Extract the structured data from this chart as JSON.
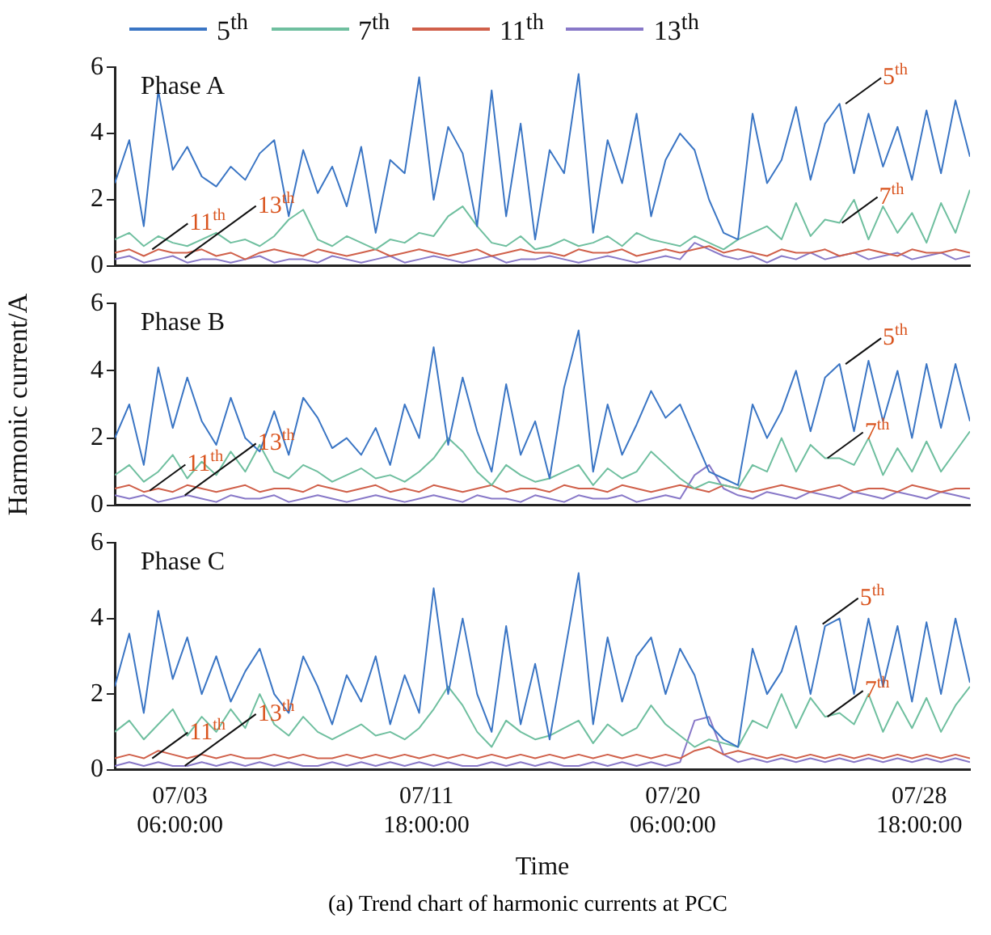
{
  "chart_data": [
    {
      "type": "line",
      "title": "Phase A",
      "legend": "top",
      "grid": false,
      "tick_labels": "y",
      "xlim": [
        "--07-01T00:00",
        "--07-30T12:00"
      ],
      "ylim": [
        0,
        6
      ],
      "yticks": [
        0,
        2,
        4,
        6
      ],
      "xticks": [
        {
          "value": "--07-03T06:00",
          "label": null
        },
        {
          "value": "--07-11T18:00",
          "label": null
        },
        {
          "value": "--07-20T06:00",
          "label": null
        },
        {
          "value": "--07-28T18:00",
          "label": null
        }
      ],
      "x": [
        "--07-01T00:00",
        "--07-01T12:00",
        "--07-02T00:00",
        "--07-02T12:00",
        "--07-03T00:00",
        "--07-03T12:00",
        "--07-04T00:00",
        "--07-04T12:00",
        "--07-05T00:00",
        "--07-05T12:00",
        "--07-06T00:00",
        "--07-06T12:00",
        "--07-07T00:00",
        "--07-07T12:00",
        "--07-08T00:00",
        "--07-08T12:00",
        "--07-09T00:00",
        "--07-09T12:00",
        "--07-10T00:00",
        "--07-10T12:00",
        "--07-11T00:00",
        "--07-11T12:00",
        "--07-12T00:00",
        "--07-12T12:00",
        "--07-13T00:00",
        "--07-13T12:00",
        "--07-14T00:00",
        "--07-14T12:00",
        "--07-15T00:00",
        "--07-15T12:00",
        "--07-16T00:00",
        "--07-16T12:00",
        "--07-17T00:00",
        "--07-17T12:00",
        "--07-18T00:00",
        "--07-18T12:00",
        "--07-19T00:00",
        "--07-19T12:00",
        "--07-20T00:00",
        "--07-20T12:00",
        "--07-21T00:00",
        "--07-21T12:00",
        "--07-22T00:00",
        "--07-22T12:00",
        "--07-23T00:00",
        "--07-23T12:00",
        "--07-24T00:00",
        "--07-24T12:00",
        "--07-25T00:00",
        "--07-25T12:00",
        "--07-26T00:00",
        "--07-26T12:00",
        "--07-27T00:00",
        "--07-27T12:00",
        "--07-28T00:00",
        "--07-28T12:00",
        "--07-29T00:00",
        "--07-29T12:00",
        "--07-30T00:00",
        "--07-30T12:00"
      ],
      "series": [
        {
          "name": "5$^{th}$",
          "color": "#3a75c4",
          "values": [
            2.5,
            3.8,
            1.2,
            5.3,
            2.9,
            3.6,
            2.7,
            2.4,
            3.0,
            2.6,
            3.4,
            3.8,
            1.5,
            3.5,
            2.2,
            3.0,
            1.8,
            3.6,
            1.0,
            3.2,
            2.8,
            5.7,
            2.0,
            4.2,
            3.4,
            1.2,
            5.3,
            1.5,
            4.3,
            0.8,
            3.5,
            2.8,
            5.8,
            1.0,
            3.8,
            2.5,
            4.6,
            1.5,
            3.2,
            4.0,
            3.5,
            2.0,
            1.0,
            0.8,
            4.6,
            2.5,
            3.2,
            4.8,
            2.6,
            4.3,
            4.9,
            2.8,
            4.6,
            3.0,
            4.2,
            2.6,
            4.7,
            2.8,
            5.0,
            3.3
          ]
        },
        {
          "name": "7$^{th}$",
          "color": "#6fbf9f",
          "values": [
            0.8,
            1.0,
            0.6,
            0.9,
            0.7,
            0.6,
            0.8,
            1.0,
            0.7,
            0.8,
            0.6,
            0.9,
            1.4,
            1.7,
            0.8,
            0.6,
            0.9,
            0.7,
            0.5,
            0.8,
            0.7,
            1.0,
            0.9,
            1.5,
            1.8,
            1.2,
            0.7,
            0.6,
            0.9,
            0.5,
            0.6,
            0.8,
            0.6,
            0.7,
            0.9,
            0.6,
            1.0,
            0.8,
            0.7,
            0.6,
            0.9,
            0.7,
            0.5,
            0.8,
            1.0,
            1.2,
            0.8,
            1.9,
            0.9,
            1.4,
            1.3,
            2.0,
            0.8,
            1.8,
            1.0,
            1.6,
            0.7,
            1.9,
            1.0,
            2.3
          ]
        },
        {
          "name": "11$^{th}$",
          "color": "#d0604a",
          "values": [
            0.4,
            0.5,
            0.3,
            0.5,
            0.4,
            0.4,
            0.5,
            0.3,
            0.4,
            0.2,
            0.4,
            0.5,
            0.4,
            0.3,
            0.5,
            0.4,
            0.3,
            0.4,
            0.5,
            0.3,
            0.4,
            0.5,
            0.4,
            0.3,
            0.4,
            0.5,
            0.3,
            0.4,
            0.5,
            0.4,
            0.4,
            0.3,
            0.5,
            0.4,
            0.4,
            0.5,
            0.3,
            0.4,
            0.5,
            0.4,
            0.5,
            0.6,
            0.4,
            0.5,
            0.4,
            0.3,
            0.5,
            0.4,
            0.4,
            0.5,
            0.3,
            0.4,
            0.5,
            0.4,
            0.3,
            0.5,
            0.4,
            0.4,
            0.5,
            0.4
          ]
        },
        {
          "name": "13$^{th}$",
          "color": "#8878c8",
          "values": [
            0.2,
            0.3,
            0.1,
            0.2,
            0.3,
            0.1,
            0.2,
            0.2,
            0.1,
            0.2,
            0.3,
            0.1,
            0.2,
            0.2,
            0.1,
            0.3,
            0.2,
            0.1,
            0.2,
            0.3,
            0.1,
            0.2,
            0.3,
            0.2,
            0.1,
            0.2,
            0.3,
            0.1,
            0.2,
            0.2,
            0.3,
            0.2,
            0.1,
            0.2,
            0.3,
            0.2,
            0.1,
            0.2,
            0.3,
            0.2,
            0.7,
            0.5,
            0.3,
            0.2,
            0.3,
            0.1,
            0.3,
            0.2,
            0.4,
            0.2,
            0.3,
            0.4,
            0.2,
            0.3,
            0.4,
            0.2,
            0.3,
            0.4,
            0.2,
            0.3
          ]
        }
      ],
      "annotations": [
        {
          "text": "5$^{th}$",
          "x": "--07-26T05:00",
          "y": 4.9
        },
        {
          "text": "7$^{th}$",
          "x": "--07-26T02:00",
          "y": 1.3
        },
        {
          "text": "11$^{th}$",
          "x": "--07-02T07:00",
          "y": 0.5
        },
        {
          "text": "13$^{th}$",
          "x": "--07-03T10:00",
          "y": 0.25
        }
      ]
    },
    {
      "type": "line",
      "title": "Phase B",
      "ylabel": "Harmonic current/A",
      "grid": false,
      "tick_labels": "y",
      "xlim": [
        "--07-01T00:00",
        "--07-30T12:00"
      ],
      "ylim": [
        0,
        6
      ],
      "yticks": [
        0,
        2,
        4,
        6
      ],
      "xticks": [
        {
          "value": "--07-03T06:00",
          "label": null
        },
        {
          "value": "--07-11T18:00",
          "label": null
        },
        {
          "value": "--07-20T06:00",
          "label": null
        },
        {
          "value": "--07-28T18:00",
          "label": null
        }
      ],
      "x": [
        "--07-01T00:00",
        "--07-01T12:00",
        "--07-02T00:00",
        "--07-02T12:00",
        "--07-03T00:00",
        "--07-03T12:00",
        "--07-04T00:00",
        "--07-04T12:00",
        "--07-05T00:00",
        "--07-05T12:00",
        "--07-06T00:00",
        "--07-06T12:00",
        "--07-07T00:00",
        "--07-07T12:00",
        "--07-08T00:00",
        "--07-08T12:00",
        "--07-09T00:00",
        "--07-09T12:00",
        "--07-10T00:00",
        "--07-10T12:00",
        "--07-11T00:00",
        "--07-11T12:00",
        "--07-12T00:00",
        "--07-12T12:00",
        "--07-13T00:00",
        "--07-13T12:00",
        "--07-14T00:00",
        "--07-14T12:00",
        "--07-15T00:00",
        "--07-15T12:00",
        "--07-16T00:00",
        "--07-16T12:00",
        "--07-17T00:00",
        "--07-17T12:00",
        "--07-18T00:00",
        "--07-18T12:00",
        "--07-19T00:00",
        "--07-19T12:00",
        "--07-20T00:00",
        "--07-20T12:00",
        "--07-21T00:00",
        "--07-21T12:00",
        "--07-22T00:00",
        "--07-22T12:00",
        "--07-23T00:00",
        "--07-23T12:00",
        "--07-24T00:00",
        "--07-24T12:00",
        "--07-25T00:00",
        "--07-25T12:00",
        "--07-26T00:00",
        "--07-26T12:00",
        "--07-27T00:00",
        "--07-27T12:00",
        "--07-28T00:00",
        "--07-28T12:00",
        "--07-29T00:00",
        "--07-29T12:00",
        "--07-30T00:00",
        "--07-30T12:00"
      ],
      "series": [
        {
          "color": "#3a75c4",
          "values": [
            2.0,
            3.0,
            1.2,
            4.1,
            2.3,
            3.8,
            2.5,
            1.8,
            3.2,
            2.0,
            1.6,
            2.8,
            1.5,
            3.2,
            2.6,
            1.7,
            2.0,
            1.5,
            2.3,
            1.2,
            3.0,
            2.0,
            4.7,
            1.8,
            3.8,
            2.2,
            1.0,
            3.6,
            1.5,
            2.5,
            0.8,
            3.5,
            5.2,
            1.0,
            3.0,
            1.5,
            2.4,
            3.4,
            2.6,
            3.0,
            2.0,
            1.0,
            0.8,
            0.6,
            3.0,
            2.0,
            2.8,
            4.0,
            2.2,
            3.8,
            4.2,
            2.2,
            4.3,
            2.5,
            4.0,
            2.0,
            4.2,
            2.3,
            4.2,
            2.5
          ]
        },
        {
          "color": "#6fbf9f",
          "values": [
            0.9,
            1.2,
            0.7,
            1.0,
            1.5,
            0.8,
            1.3,
            0.9,
            1.6,
            1.0,
            1.8,
            1.0,
            0.8,
            1.2,
            1.0,
            0.7,
            0.9,
            1.1,
            0.8,
            0.9,
            0.7,
            1.0,
            1.4,
            2.0,
            1.6,
            1.0,
            0.6,
            1.2,
            0.9,
            0.7,
            0.8,
            1.0,
            1.2,
            0.6,
            1.1,
            0.8,
            1.0,
            1.6,
            1.2,
            0.8,
            0.5,
            0.7,
            0.6,
            0.5,
            1.2,
            1.0,
            2.0,
            1.0,
            1.8,
            1.4,
            1.4,
            1.2,
            2.0,
            0.9,
            1.7,
            1.0,
            1.9,
            1.0,
            1.6,
            2.2
          ]
        },
        {
          "color": "#d0604a",
          "values": [
            0.5,
            0.6,
            0.4,
            0.5,
            0.4,
            0.6,
            0.5,
            0.4,
            0.5,
            0.6,
            0.4,
            0.5,
            0.5,
            0.4,
            0.6,
            0.5,
            0.4,
            0.5,
            0.6,
            0.4,
            0.5,
            0.4,
            0.6,
            0.5,
            0.4,
            0.5,
            0.6,
            0.4,
            0.5,
            0.5,
            0.4,
            0.6,
            0.5,
            0.5,
            0.4,
            0.6,
            0.5,
            0.4,
            0.5,
            0.6,
            0.5,
            0.4,
            0.6,
            0.5,
            0.4,
            0.5,
            0.6,
            0.5,
            0.4,
            0.5,
            0.6,
            0.4,
            0.5,
            0.5,
            0.4,
            0.6,
            0.5,
            0.4,
            0.5,
            0.5
          ]
        },
        {
          "color": "#8878c8",
          "values": [
            0.3,
            0.2,
            0.3,
            0.1,
            0.2,
            0.3,
            0.2,
            0.1,
            0.3,
            0.2,
            0.2,
            0.3,
            0.1,
            0.2,
            0.3,
            0.2,
            0.1,
            0.2,
            0.3,
            0.2,
            0.1,
            0.2,
            0.3,
            0.2,
            0.1,
            0.3,
            0.2,
            0.2,
            0.1,
            0.3,
            0.2,
            0.1,
            0.3,
            0.2,
            0.2,
            0.3,
            0.1,
            0.2,
            0.3,
            0.2,
            0.9,
            1.2,
            0.5,
            0.3,
            0.2,
            0.4,
            0.3,
            0.2,
            0.4,
            0.3,
            0.2,
            0.4,
            0.3,
            0.2,
            0.4,
            0.3,
            0.2,
            0.4,
            0.3,
            0.2
          ]
        }
      ],
      "annotations": [
        {
          "text": "5$^{th}$",
          "x": "--07-26T05:00",
          "y": 4.2
        },
        {
          "text": "7$^{th}$",
          "x": "--07-25T14:00",
          "y": 1.4
        },
        {
          "text": "11$^{th}$",
          "x": "--07-02T05:00",
          "y": 0.44
        },
        {
          "text": "13$^{th}$",
          "x": "--07-03T10:00",
          "y": 0.3
        }
      ]
    },
    {
      "type": "line",
      "title": "Phase C",
      "xlabel": "Time",
      "grid": false,
      "xlim": [
        "--07-01T00:00",
        "--07-30T12:00"
      ],
      "ylim": [
        0,
        6
      ],
      "yticks": [
        0,
        2,
        4,
        6
      ],
      "xticks": [
        {
          "value": "--07-03T06:00",
          "label": "07/03 06:00:00"
        },
        {
          "value": "--07-11T18:00",
          "label": "07/11 18:00:00"
        },
        {
          "value": "--07-20T06:00",
          "label": "07/20 06:00:00"
        },
        {
          "value": "--07-28T18:00",
          "label": "07/28 18:00:00"
        }
      ],
      "x": [
        "--07-01T00:00",
        "--07-01T12:00",
        "--07-02T00:00",
        "--07-02T12:00",
        "--07-03T00:00",
        "--07-03T12:00",
        "--07-04T00:00",
        "--07-04T12:00",
        "--07-05T00:00",
        "--07-05T12:00",
        "--07-06T00:00",
        "--07-06T12:00",
        "--07-07T00:00",
        "--07-07T12:00",
        "--07-08T00:00",
        "--07-08T12:00",
        "--07-09T00:00",
        "--07-09T12:00",
        "--07-10T00:00",
        "--07-10T12:00",
        "--07-11T00:00",
        "--07-11T12:00",
        "--07-12T00:00",
        "--07-12T12:00",
        "--07-13T00:00",
        "--07-13T12:00",
        "--07-14T00:00",
        "--07-14T12:00",
        "--07-15T00:00",
        "--07-15T12:00",
        "--07-16T00:00",
        "--07-16T12:00",
        "--07-17T00:00",
        "--07-17T12:00",
        "--07-18T00:00",
        "--07-18T12:00",
        "--07-19T00:00",
        "--07-19T12:00",
        "--07-20T00:00",
        "--07-20T12:00",
        "--07-21T00:00",
        "--07-21T12:00",
        "--07-22T00:00",
        "--07-22T12:00",
        "--07-23T00:00",
        "--07-23T12:00",
        "--07-24T00:00",
        "--07-24T12:00",
        "--07-25T00:00",
        "--07-25T12:00",
        "--07-26T00:00",
        "--07-26T12:00",
        "--07-27T00:00",
        "--07-27T12:00",
        "--07-28T00:00",
        "--07-28T12:00",
        "--07-29T00:00",
        "--07-29T12:00",
        "--07-30T00:00",
        "--07-30T12:00"
      ],
      "series": [
        {
          "color": "#3a75c4",
          "values": [
            2.2,
            3.6,
            1.5,
            4.2,
            2.4,
            3.5,
            2.0,
            3.0,
            1.8,
            2.6,
            3.2,
            2.0,
            1.5,
            3.0,
            2.2,
            1.2,
            2.5,
            1.8,
            3.0,
            1.2,
            2.5,
            1.5,
            4.8,
            2.0,
            4.0,
            2.0,
            1.0,
            3.8,
            1.2,
            2.8,
            0.8,
            3.0,
            5.2,
            1.2,
            3.5,
            1.8,
            3.0,
            3.5,
            2.0,
            3.2,
            2.5,
            1.2,
            0.8,
            0.6,
            3.2,
            2.0,
            2.6,
            3.8,
            2.0,
            3.8,
            4.0,
            2.0,
            4.0,
            2.2,
            3.8,
            1.8,
            3.9,
            2.0,
            4.0,
            2.3
          ]
        },
        {
          "color": "#6fbf9f",
          "values": [
            1.0,
            1.3,
            0.8,
            1.2,
            1.6,
            0.9,
            1.4,
            1.0,
            1.6,
            1.1,
            2.0,
            1.2,
            0.9,
            1.4,
            1.0,
            0.8,
            1.0,
            1.2,
            0.9,
            1.0,
            0.8,
            1.1,
            1.6,
            2.2,
            1.7,
            1.0,
            0.6,
            1.3,
            1.0,
            0.8,
            0.9,
            1.1,
            1.3,
            0.7,
            1.2,
            0.9,
            1.1,
            1.7,
            1.2,
            0.9,
            0.6,
            0.8,
            0.7,
            0.6,
            1.3,
            1.1,
            2.0,
            1.1,
            1.9,
            1.4,
            1.5,
            1.2,
            2.0,
            1.0,
            1.8,
            1.1,
            1.9,
            1.0,
            1.7,
            2.2
          ]
        },
        {
          "color": "#d0604a",
          "values": [
            0.3,
            0.4,
            0.3,
            0.5,
            0.4,
            0.3,
            0.4,
            0.3,
            0.4,
            0.3,
            0.3,
            0.4,
            0.3,
            0.4,
            0.3,
            0.3,
            0.4,
            0.3,
            0.4,
            0.3,
            0.4,
            0.3,
            0.4,
            0.3,
            0.4,
            0.3,
            0.4,
            0.3,
            0.4,
            0.3,
            0.4,
            0.3,
            0.4,
            0.3,
            0.4,
            0.3,
            0.4,
            0.3,
            0.4,
            0.3,
            0.5,
            0.6,
            0.4,
            0.5,
            0.4,
            0.3,
            0.4,
            0.3,
            0.4,
            0.3,
            0.4,
            0.3,
            0.4,
            0.3,
            0.4,
            0.3,
            0.4,
            0.3,
            0.4,
            0.3
          ]
        },
        {
          "color": "#8878c8",
          "values": [
            0.1,
            0.2,
            0.1,
            0.2,
            0.1,
            0.1,
            0.2,
            0.1,
            0.2,
            0.1,
            0.2,
            0.1,
            0.2,
            0.1,
            0.1,
            0.2,
            0.1,
            0.2,
            0.1,
            0.2,
            0.1,
            0.2,
            0.1,
            0.2,
            0.1,
            0.1,
            0.2,
            0.1,
            0.2,
            0.1,
            0.2,
            0.1,
            0.1,
            0.2,
            0.1,
            0.2,
            0.1,
            0.2,
            0.1,
            0.2,
            1.3,
            1.4,
            0.4,
            0.2,
            0.3,
            0.2,
            0.3,
            0.2,
            0.3,
            0.2,
            0.3,
            0.2,
            0.3,
            0.2,
            0.3,
            0.2,
            0.3,
            0.2,
            0.3,
            0.2
          ]
        }
      ],
      "annotations": [
        {
          "text": "5$^{th}$",
          "x": "--07-25T10:00",
          "y": 3.85
        },
        {
          "text": "7$^{th}$",
          "x": "--07-25T14:00",
          "y": 1.4
        },
        {
          "text": "11$^{th}$",
          "x": "--07-02T07:00",
          "y": 0.3
        },
        {
          "text": "13$^{th}$",
          "x": "--07-03T10:00",
          "y": 0.1
        },
        "(a) Trend chart of harmonic currents at PCC"
      ]
    }
  ]
}
